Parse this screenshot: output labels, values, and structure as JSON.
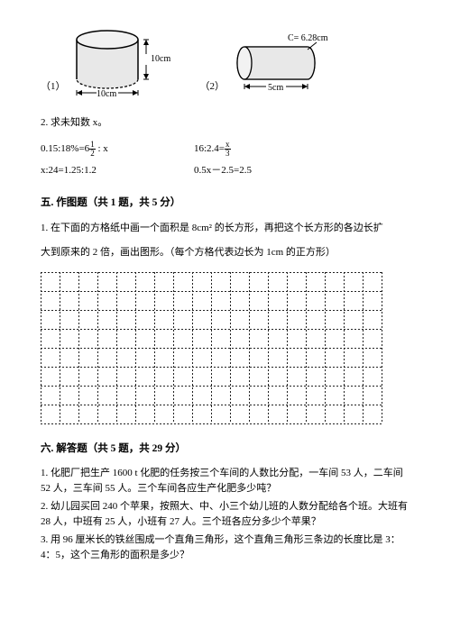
{
  "figures": {
    "fig1": {
      "label": "（1）",
      "height_label": "10cm",
      "width_label": "10cm",
      "stroke": "#000000",
      "fill": "#e8e8e8"
    },
    "fig2": {
      "label": "（2）",
      "circumference_label": "C= 6.28cm",
      "length_label": "5cm",
      "stroke": "#000000",
      "fill": "#e8e8e8"
    }
  },
  "q2": {
    "text": "2. 求未知数 x。",
    "eq1a": "0.15:18%=6",
    "eq1a_frac_n": "1",
    "eq1a_frac_d": "2",
    "eq1a_tail": " : x",
    "eq1b_head": "16:2.4=",
    "eq1b_frac_n": "x",
    "eq1b_frac_d": "3",
    "eq2a": "x:24=1.25:1.2",
    "eq2b": "0.5x－2.5=2.5"
  },
  "section5": {
    "title": "五. 作图题（共 1 题，共 5 分）",
    "q1_line1": "1. 在下面的方格纸中画一个面积是 8cm² 的长方形，再把这个长方形的各边长扩",
    "q1_line2": "大到原来的 2 倍，画出图形。（每个方格代表边长为 1cm 的正方形）",
    "grid": {
      "cols": 18,
      "rows": 8,
      "cell": 21,
      "stroke": "#222222",
      "dash": "2,2"
    }
  },
  "section6": {
    "title": "六. 解答题（共 5 题，共 29 分）",
    "q1": "1. 化肥厂把生产 1600 t 化肥的任务按三个车间的人数比分配，一车间 53 人，二车间 52 人，三车间 55 人。三个车间各应生产化肥多少吨？",
    "q2": "2. 幼儿园买回 240 个苹果，按照大、中、小三个幼儿班的人数分配给各个班。大班有 28 人，中班有 25 人，小班有 27 人。三个班各应分多少个苹果？",
    "q3": "3. 用 96 厘米长的铁丝围成一个直角三角形，这个直角三角形三条边的长度比是 3：4：5，这个三角形的面积是多少？"
  }
}
